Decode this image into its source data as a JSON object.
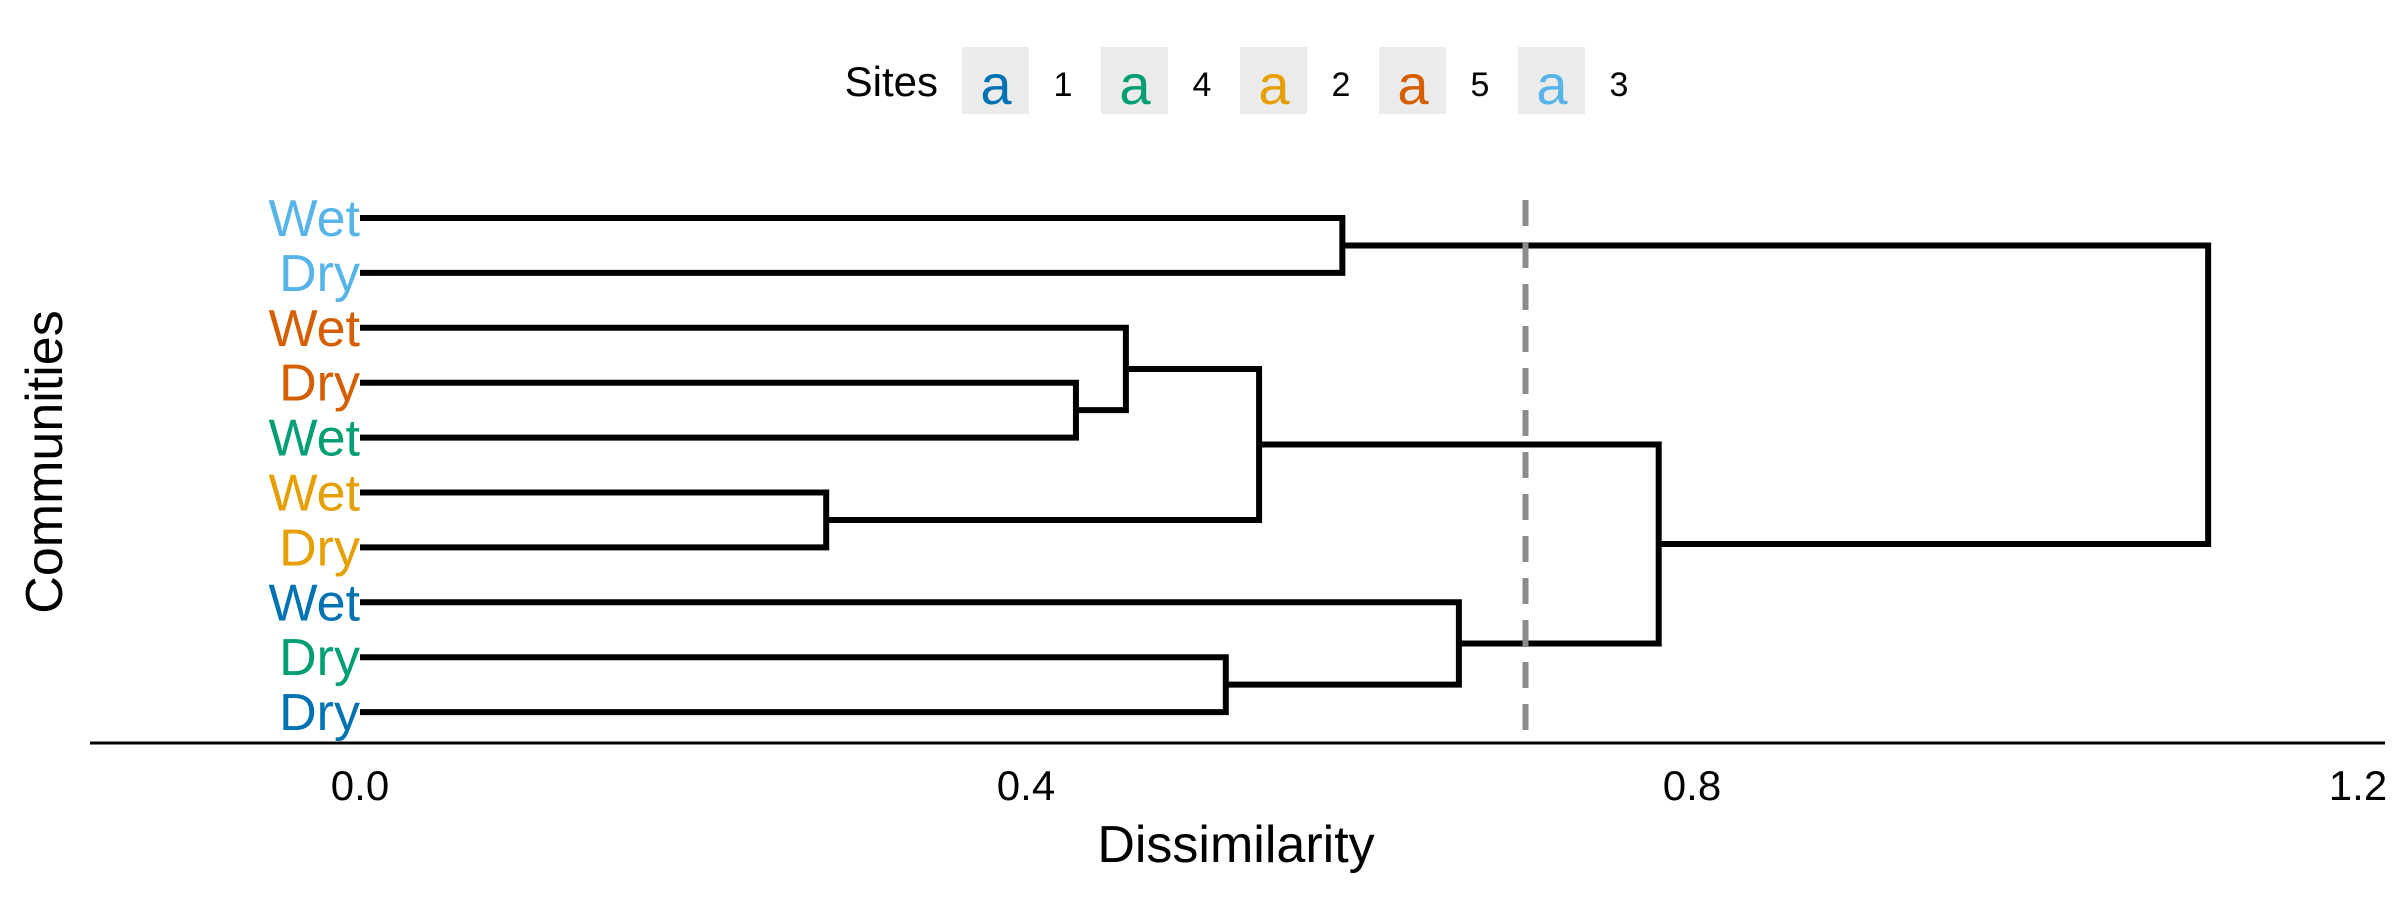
{
  "chart_data": {
    "type": "dendrogram",
    "xlabel": "Dissimilarity",
    "ylabel": "Communities",
    "xlim": [
      -0.2,
      1.2
    ],
    "x_ticks": [
      0.0,
      0.4,
      0.8,
      1.2
    ],
    "x_tick_labels": [
      "0.0",
      "0.4",
      "0.8",
      "1.2"
    ],
    "cut_height": 0.7,
    "legend": {
      "title": "Sites",
      "position": "top",
      "key_glyph": "a",
      "entries": [
        {
          "label": "1",
          "color": "#0072B2"
        },
        {
          "label": "4",
          "color": "#009E73"
        },
        {
          "label": "2",
          "color": "#E69F00"
        },
        {
          "label": "5",
          "color": "#D55E00"
        },
        {
          "label": "3",
          "color": "#56B4E9"
        }
      ]
    },
    "leaves": [
      {
        "label": "Wet",
        "site": "3",
        "color": "#56B4E9"
      },
      {
        "label": "Dry",
        "site": "3",
        "color": "#56B4E9"
      },
      {
        "label": "Wet",
        "site": "5",
        "color": "#D55E00"
      },
      {
        "label": "Dry",
        "site": "5",
        "color": "#D55E00"
      },
      {
        "label": "Wet",
        "site": "4",
        "color": "#009E73"
      },
      {
        "label": "Wet",
        "site": "2",
        "color": "#E69F00"
      },
      {
        "label": "Dry",
        "site": "2",
        "color": "#E69F00"
      },
      {
        "label": "Wet",
        "site": "1",
        "color": "#0072B2"
      },
      {
        "label": "Dry",
        "site": "4",
        "color": "#009E73"
      },
      {
        "label": "Dry",
        "site": "1",
        "color": "#0072B2"
      }
    ],
    "merges": [
      {
        "a": "L5",
        "b": "L6",
        "height": 0.28
      },
      {
        "a": "L3",
        "b": "L4",
        "height": 0.43
      },
      {
        "a": "M1",
        "b": "L2",
        "height": 0.46
      },
      {
        "a": "M2",
        "b": "M0",
        "height": 0.54
      },
      {
        "a": "L8",
        "b": "L9",
        "height": 0.52
      },
      {
        "a": "L0",
        "b": "L1",
        "height": 0.59
      },
      {
        "a": "L7",
        "b": "M4",
        "height": 0.66
      },
      {
        "a": "M3",
        "b": "M6",
        "height": 0.78
      },
      {
        "a": "M5",
        "b": "M7",
        "height": 1.11
      }
    ]
  }
}
